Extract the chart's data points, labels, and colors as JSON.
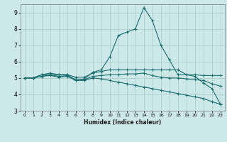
{
  "title": "",
  "xlabel": "Humidex (Indice chaleur)",
  "xlim": [
    -0.5,
    23.5
  ],
  "ylim": [
    3,
    9.5
  ],
  "yticks": [
    3,
    4,
    5,
    6,
    7,
    8,
    9
  ],
  "xticks": [
    0,
    1,
    2,
    3,
    4,
    5,
    6,
    7,
    8,
    9,
    10,
    11,
    12,
    13,
    14,
    15,
    16,
    17,
    18,
    19,
    20,
    21,
    22,
    23
  ],
  "background_color": "#cde8e8",
  "grid_color": "#aacccc",
  "line_color": "#1a6e6e",
  "lines": [
    {
      "x": [
        0,
        1,
        2,
        3,
        4,
        5,
        6,
        7,
        8,
        9,
        10,
        11,
        12,
        13,
        14,
        15,
        16,
        17,
        18,
        19,
        20,
        21,
        22,
        23
      ],
      "y": [
        5.0,
        5.0,
        5.2,
        5.3,
        5.2,
        5.2,
        4.85,
        4.95,
        5.35,
        5.5,
        6.3,
        7.6,
        7.8,
        8.0,
        9.3,
        8.5,
        7.0,
        6.1,
        5.2,
        5.2,
        5.1,
        4.7,
        4.35,
        3.4
      ]
    },
    {
      "x": [
        0,
        1,
        2,
        3,
        4,
        5,
        6,
        7,
        8,
        9,
        10,
        11,
        12,
        13,
        14,
        15,
        16,
        17,
        18,
        19,
        20,
        21,
        22,
        23
      ],
      "y": [
        5.0,
        5.0,
        5.2,
        5.2,
        5.2,
        5.2,
        5.05,
        5.05,
        5.3,
        5.4,
        5.5,
        5.5,
        5.5,
        5.5,
        5.5,
        5.5,
        5.5,
        5.5,
        5.5,
        5.2,
        5.2,
        5.15,
        5.15,
        5.15
      ]
    },
    {
      "x": [
        0,
        1,
        2,
        3,
        4,
        5,
        6,
        7,
        8,
        9,
        10,
        11,
        12,
        13,
        14,
        15,
        16,
        17,
        18,
        19,
        20,
        21,
        22,
        23
      ],
      "y": [
        5.0,
        5.0,
        5.1,
        5.2,
        5.1,
        5.15,
        4.9,
        4.9,
        5.1,
        5.15,
        5.2,
        5.2,
        5.25,
        5.25,
        5.3,
        5.15,
        5.05,
        5.0,
        5.0,
        4.95,
        4.9,
        4.85,
        4.65,
        4.5
      ]
    },
    {
      "x": [
        0,
        1,
        2,
        3,
        4,
        5,
        6,
        7,
        8,
        9,
        10,
        11,
        12,
        13,
        14,
        15,
        16,
        17,
        18,
        19,
        20,
        21,
        22,
        23
      ],
      "y": [
        5.0,
        5.0,
        5.1,
        5.15,
        5.05,
        5.1,
        4.85,
        4.85,
        5.0,
        4.95,
        4.85,
        4.75,
        4.65,
        4.55,
        4.45,
        4.35,
        4.25,
        4.15,
        4.05,
        3.95,
        3.85,
        3.75,
        3.55,
        3.4
      ]
    }
  ]
}
